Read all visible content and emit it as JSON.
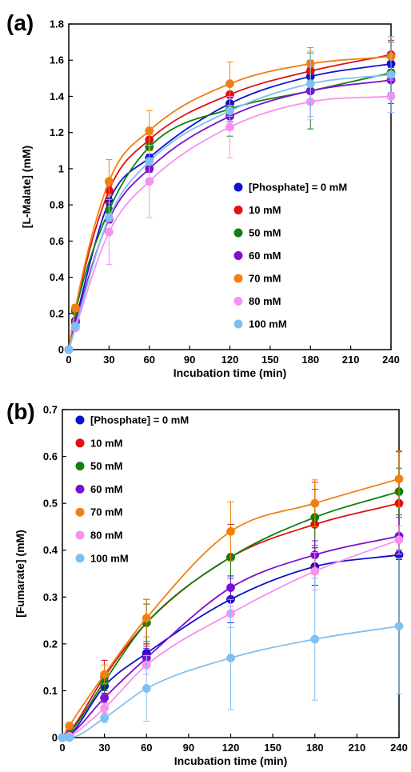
{
  "chart_data": [
    {
      "type": "line",
      "panel_label": "(a)",
      "xlabel": "Incubation time (min)",
      "ylabel": "[L-Malate] (mM)",
      "xlim": [
        0,
        240
      ],
      "ylim": [
        0,
        1.8
      ],
      "x_ticks": [
        "0",
        "30",
        "60",
        "90",
        "120",
        "150",
        "180",
        "210",
        "240"
      ],
      "y_ticks": [
        "0",
        "0.2",
        "0.4",
        "0.6",
        "0.8",
        "1",
        "1.2",
        "1.4",
        "1.6",
        "1.8"
      ],
      "x_tick_values": [
        0,
        30,
        60,
        90,
        120,
        150,
        180,
        210,
        240
      ],
      "y_tick_values": [
        0,
        0.2,
        0.4,
        0.6,
        0.8,
        1.0,
        1.2,
        1.4,
        1.6,
        1.8
      ],
      "legend_position": "center-right",
      "x": [
        0,
        5,
        30,
        60,
        120,
        180,
        240
      ],
      "series": [
        {
          "name": "[Phosphate] = 0 mM",
          "color": "#1010d0",
          "values": [
            0,
            0.16,
            0.82,
            1.06,
            1.36,
            1.51,
            1.58
          ],
          "errors": [
            0,
            0.01,
            0.02,
            0.02,
            0.03,
            0.05,
            0.06
          ]
        },
        {
          "name": "10 mM",
          "color": "#e01010",
          "values": [
            0,
            0.22,
            0.88,
            1.16,
            1.41,
            1.54,
            1.63
          ],
          "errors": [
            0,
            0.01,
            0.03,
            0.03,
            0.06,
            0.06,
            0.08
          ]
        },
        {
          "name": "50 mM",
          "color": "#108010",
          "values": [
            0,
            0.21,
            0.77,
            1.12,
            1.33,
            1.43,
            1.53
          ],
          "errors": [
            0,
            0.01,
            0.02,
            0.02,
            0.15,
            0.21,
            0.17
          ]
        },
        {
          "name": "60 mM",
          "color": "#7b10d0",
          "values": [
            0,
            0.15,
            0.72,
            1.0,
            1.29,
            1.43,
            1.49
          ],
          "errors": [
            0,
            0.01,
            0.02,
            0.02,
            0.03,
            0.05,
            0.07
          ]
        },
        {
          "name": "70 mM",
          "color": "#f08010",
          "values": [
            0,
            0.23,
            0.93,
            1.21,
            1.47,
            1.58,
            1.62
          ],
          "errors": [
            0,
            0.02,
            0.12,
            0.11,
            0.12,
            0.09,
            0.11
          ]
        },
        {
          "name": "80 mM",
          "color": "#f890f0",
          "values": [
            0,
            0.12,
            0.65,
            0.93,
            1.23,
            1.37,
            1.4
          ],
          "errors": [
            0,
            0.01,
            0.18,
            0.2,
            0.17,
            0.1,
            0.09
          ]
        },
        {
          "name": "100 mM",
          "color": "#80c0f0",
          "values": [
            0,
            0.13,
            0.73,
            1.04,
            1.32,
            1.47,
            1.52
          ],
          "errors": [
            0,
            0.01,
            0.02,
            0.02,
            0.03,
            0.18,
            0.21
          ]
        }
      ]
    },
    {
      "type": "line",
      "panel_label": "(b)",
      "xlabel": "Incubation time (min)",
      "ylabel": "[Fumarate] (mM)",
      "xlim": [
        0,
        240
      ],
      "ylim": [
        0,
        0.7
      ],
      "x_ticks": [
        "0",
        "30",
        "60",
        "90",
        "120",
        "150",
        "180",
        "210",
        "240"
      ],
      "y_ticks": [
        "0",
        "0.1",
        "0.2",
        "0.3",
        "0.4",
        "0.5",
        "0.6",
        "0.7"
      ],
      "x_tick_values": [
        0,
        30,
        60,
        90,
        120,
        150,
        180,
        210,
        240
      ],
      "y_tick_values": [
        0,
        0.1,
        0.2,
        0.3,
        0.4,
        0.5,
        0.6,
        0.7
      ],
      "legend_position": "top-left",
      "x": [
        0,
        5,
        30,
        60,
        120,
        180,
        240
      ],
      "series": [
        {
          "name": "[Phosphate] = 0 mM",
          "color": "#1010d0",
          "values": [
            0,
            0.005,
            0.11,
            0.18,
            0.295,
            0.365,
            0.39
          ],
          "errors": [
            0,
            0.003,
            0.01,
            0.02,
            0.05,
            0.04,
            0.01
          ]
        },
        {
          "name": "10 mM",
          "color": "#e01010",
          "values": [
            0,
            0.012,
            0.13,
            0.245,
            0.385,
            0.455,
            0.5
          ],
          "errors": [
            0,
            0.004,
            0.035,
            0.05,
            0.07,
            0.09,
            0.11
          ]
        },
        {
          "name": "50 mM",
          "color": "#108010",
          "values": [
            0,
            0.01,
            0.12,
            0.245,
            0.385,
            0.47,
            0.525
          ],
          "errors": [
            0,
            0.004,
            0.02,
            0.04,
            0.06,
            0.06,
            0.05
          ]
        },
        {
          "name": "60 mM",
          "color": "#7b10d0",
          "values": [
            0,
            0.005,
            0.085,
            0.17,
            0.32,
            0.39,
            0.43
          ],
          "errors": [
            0,
            0.003,
            0.01,
            0.02,
            0.02,
            0.03,
            0.04
          ]
        },
        {
          "name": "70 mM",
          "color": "#f08010",
          "values": [
            0,
            0.025,
            0.135,
            0.255,
            0.44,
            0.5,
            0.552
          ],
          "errors": [
            0,
            0.005,
            0.02,
            0.04,
            0.063,
            0.05,
            0.06
          ]
        },
        {
          "name": "80 mM",
          "color": "#f890f0",
          "values": [
            0,
            0.003,
            0.063,
            0.155,
            0.265,
            0.355,
            0.422
          ],
          "errors": [
            0,
            0.002,
            0.01,
            0.02,
            0.03,
            0.04,
            0.03
          ]
        },
        {
          "name": "100 mM",
          "color": "#80c0f0",
          "values": [
            0,
            0,
            0.042,
            0.105,
            0.17,
            0.21,
            0.238
          ],
          "errors": [
            0,
            0.002,
            0.01,
            0.07,
            0.11,
            0.13,
            0.145
          ]
        }
      ]
    }
  ]
}
